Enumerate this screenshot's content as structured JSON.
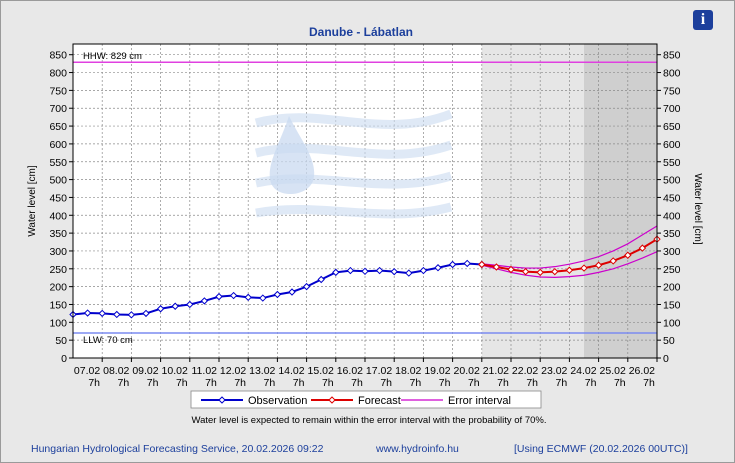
{
  "info_icon": {
    "name": "info-icon",
    "glyph": "i",
    "color": "#1c3f9c"
  },
  "chart_data": {
    "type": "line",
    "title": "Danube - Lábatlan",
    "ylabel": "Water level [cm]",
    "ylabel_right": "Water level [cm]",
    "ylim": [
      0,
      880
    ],
    "yticks": [
      0,
      50,
      100,
      150,
      200,
      250,
      300,
      350,
      400,
      450,
      500,
      550,
      600,
      650,
      700,
      750,
      800,
      850
    ],
    "xlim": [
      0,
      20
    ],
    "xticks": [
      {
        "x": 1,
        "date": "07.02",
        "hour": "7h"
      },
      {
        "x": 2,
        "date": "08.02",
        "hour": "7h"
      },
      {
        "x": 3,
        "date": "09.02",
        "hour": "7h"
      },
      {
        "x": 4,
        "date": "10.02",
        "hour": "7h"
      },
      {
        "x": 5,
        "date": "11.02",
        "hour": "7h"
      },
      {
        "x": 6,
        "date": "12.02",
        "hour": "7h"
      },
      {
        "x": 7,
        "date": "13.02",
        "hour": "7h"
      },
      {
        "x": 8,
        "date": "14.02",
        "hour": "7h"
      },
      {
        "x": 9,
        "date": "15.02",
        "hour": "7h"
      },
      {
        "x": 10,
        "date": "16.02",
        "hour": "7h"
      },
      {
        "x": 11,
        "date": "17.02",
        "hour": "7h"
      },
      {
        "x": 12,
        "date": "18.02",
        "hour": "7h"
      },
      {
        "x": 13,
        "date": "19.02",
        "hour": "7h"
      },
      {
        "x": 14,
        "date": "20.02",
        "hour": "7h"
      },
      {
        "x": 15,
        "date": "21.02",
        "hour": "7h"
      },
      {
        "x": 16,
        "date": "22.02",
        "hour": "7h"
      },
      {
        "x": 17,
        "date": "23.02",
        "hour": "7h"
      },
      {
        "x": 18,
        "date": "24.02",
        "hour": "7h"
      },
      {
        "x": 19,
        "date": "25.02",
        "hour": "7h"
      },
      {
        "x": 20,
        "date": "26.02",
        "hour": "7h"
      }
    ],
    "grid": true,
    "forecast_start_x": 14,
    "extended_forecast_start_x": 17.5,
    "reference_lines": [
      {
        "label": "HHW: 829 cm",
        "value": 829,
        "color": "#e040e0"
      },
      {
        "label": "LLW: 70 cm",
        "value": 70,
        "color": "#7b8cf0"
      }
    ],
    "series": [
      {
        "name": "Observation",
        "color": "#0000cc",
        "x": [
          0,
          0.5,
          1,
          1.5,
          2,
          2.5,
          3,
          3.5,
          4,
          4.5,
          5,
          5.5,
          6,
          6.5,
          7,
          7.5,
          8,
          8.5,
          9,
          9.5,
          10,
          10.5,
          11,
          11.5,
          12,
          12.5,
          13,
          13.5,
          14
        ],
        "y": [
          122,
          126,
          125,
          122,
          121,
          125,
          138,
          145,
          150,
          160,
          172,
          175,
          170,
          168,
          178,
          185,
          200,
          220,
          240,
          245,
          243,
          245,
          242,
          238,
          245,
          253,
          262,
          265,
          262
        ]
      },
      {
        "name": "Forecast",
        "color": "#dd0000",
        "x": [
          14,
          14.5,
          15,
          15.5,
          16,
          16.5,
          17,
          17.5,
          18,
          18.5,
          19,
          19.5,
          20
        ],
        "y": [
          262,
          255,
          248,
          242,
          240,
          242,
          246,
          252,
          260,
          272,
          288,
          308,
          333
        ]
      },
      {
        "name": "Error interval",
        "color": "#cc00cc",
        "x": [
          14,
          14.5,
          15,
          15.5,
          16,
          16.5,
          17,
          17.5,
          18,
          18.5,
          19,
          19.5,
          20
        ],
        "upper": [
          264,
          260,
          255,
          252,
          252,
          256,
          263,
          272,
          284,
          300,
          320,
          345,
          370
        ],
        "lower": [
          260,
          250,
          240,
          232,
          227,
          226,
          228,
          232,
          240,
          250,
          264,
          280,
          298
        ]
      }
    ]
  },
  "note": "Water level is expected to remain within the error interval with the probability of 70%.",
  "footer": {
    "service": "Hungarian Hydrological Forecasting Service, 20.02.2026 09:22",
    "website": "www.hydroinfo.hu",
    "model": "[Using ECMWF (20.02.2026  00UTC)]"
  }
}
